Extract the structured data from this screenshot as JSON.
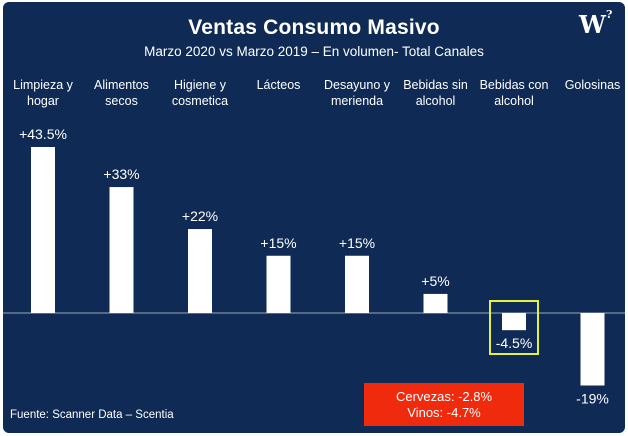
{
  "title": "Ventas Consumo Masivo",
  "subtitle": "Marzo 2020 vs Marzo 2019 – En volumen- Total Canales",
  "logo": {
    "main": "W",
    "mark": "?"
  },
  "footer": "Fuente: Scanner Data – Scentia",
  "note": {
    "line1": "Cervezas: -2.8%",
    "line2": "Vinos: -4.7%",
    "color": "#f02a0c"
  },
  "colors": {
    "background": "#0e2a55",
    "bars": "#ffffff",
    "highlight": "#e5f23a",
    "zero_line": "#9aa8c0"
  },
  "chart_data": {
    "type": "bar",
    "title": "Ventas Consumo Masivo",
    "subtitle": "Marzo 2020 vs Marzo 2019 – En volumen- Total Canales",
    "categories": [
      [
        "Limpieza y",
        "hogar"
      ],
      [
        "Alimentos",
        "secos"
      ],
      [
        "Higiene y",
        "cosmetica"
      ],
      [
        "Lácteos"
      ],
      [
        "Desayuno y",
        "merienda"
      ],
      [
        "Bebidas sin",
        "alcohol"
      ],
      [
        "Bebidas con",
        "alcohol"
      ],
      [
        "Golosinas"
      ]
    ],
    "values": [
      43.5,
      33,
      22,
      15,
      15,
      5,
      -4.5,
      -19
    ],
    "labels": [
      "+43.5%",
      "+33%",
      "+22%",
      "+15%",
      "+15%",
      "+5%",
      "-4.5%",
      "-19%"
    ],
    "highlighted_index": 6,
    "unit": "%",
    "ylim": [
      -19,
      43.5
    ],
    "grid": false,
    "legend": "none"
  }
}
